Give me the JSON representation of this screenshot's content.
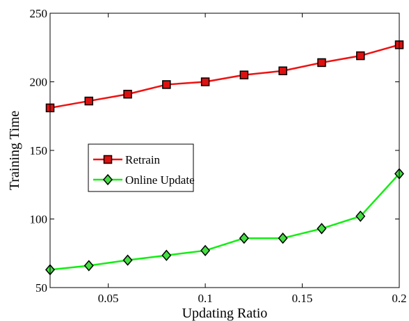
{
  "chart_data": {
    "type": "line",
    "title": "",
    "xlabel": "Updating Ratio",
    "ylabel": "Training Time",
    "xlim": [
      0.02,
      0.2
    ],
    "ylim": [
      50,
      250
    ],
    "xticks": [
      0.05,
      0.1,
      0.15,
      0.2
    ],
    "xtick_labels": [
      "0.05",
      "0.1",
      "0.15",
      "0.2"
    ],
    "yticks": [
      50,
      100,
      150,
      200,
      250
    ],
    "ytick_labels": [
      "50",
      "100",
      "150",
      "200",
      "250"
    ],
    "grid": false,
    "legend_position": "center-left",
    "x": [
      0.02,
      0.04,
      0.06,
      0.08,
      0.1,
      0.12,
      0.14,
      0.16,
      0.18,
      0.2
    ],
    "series": [
      {
        "name": "Retrain",
        "color": "#ee1111",
        "marker": "square",
        "values": [
          181,
          186,
          191,
          198,
          200,
          205,
          208,
          214,
          219,
          227
        ]
      },
      {
        "name": "Online Update",
        "color": "#11ee11",
        "marker": "diamond",
        "values": [
          63,
          66,
          70,
          73.5,
          77,
          86,
          86,
          93,
          102,
          133
        ]
      }
    ]
  }
}
